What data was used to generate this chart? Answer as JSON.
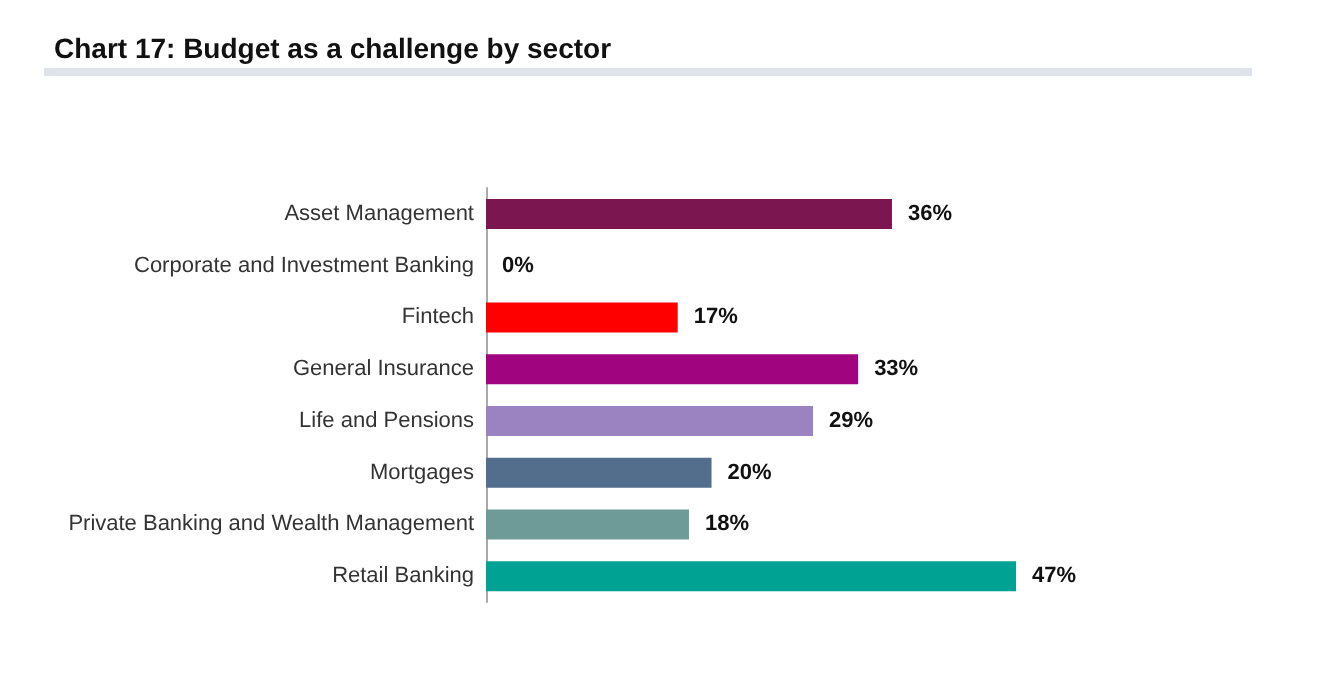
{
  "chart_data": {
    "type": "bar",
    "orientation": "horizontal",
    "title": "Chart 17: Budget as a challenge by sector",
    "categories": [
      "Asset Management",
      "Corporate and Investment Banking",
      "Fintech",
      "General Insurance",
      "Life and Pensions",
      "Mortgages",
      "Private Banking and Wealth Management",
      "Retail Banking"
    ],
    "values": [
      36,
      0,
      17,
      33,
      29,
      20,
      18,
      47
    ],
    "colors": [
      "#7b1650",
      "#7b1650",
      "#ff0000",
      "#a0047f",
      "#9b82c0",
      "#536e8c",
      "#6e9a97",
      "#00a294"
    ],
    "value_labels": [
      "36%",
      "0%",
      "17%",
      "33%",
      "29%",
      "20%",
      "18%",
      "47%"
    ]
  }
}
